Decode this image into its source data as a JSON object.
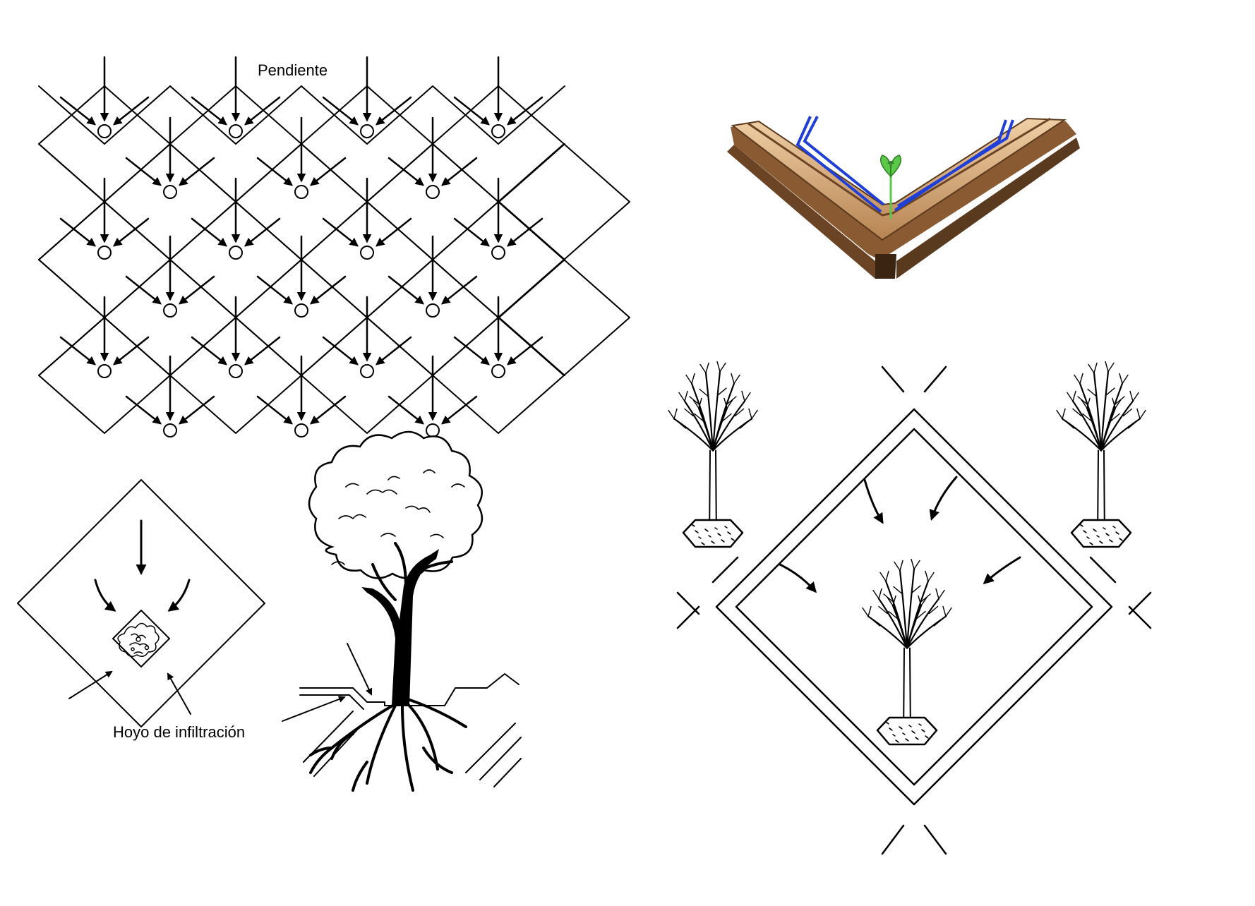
{
  "labels": {
    "slope": "Pendiente",
    "infiltration_hole": "Hoyo de infiltración"
  },
  "colors": {
    "ink": "#000000",
    "bund_light": "#e2b68a",
    "bund_dark": "#8a5a32",
    "irrigation_line": "#1f3fd6",
    "seedling": "#5cc84a"
  },
  "panels": [
    "micro-catchment grid with slope arrows",
    "single micro-catchment with infiltration hole",
    "tree planted at lower corner of terrace",
    "V-shaped earthen bund with seedling and irrigation lines",
    "diamond micro-catchment with trees at corners"
  ]
}
